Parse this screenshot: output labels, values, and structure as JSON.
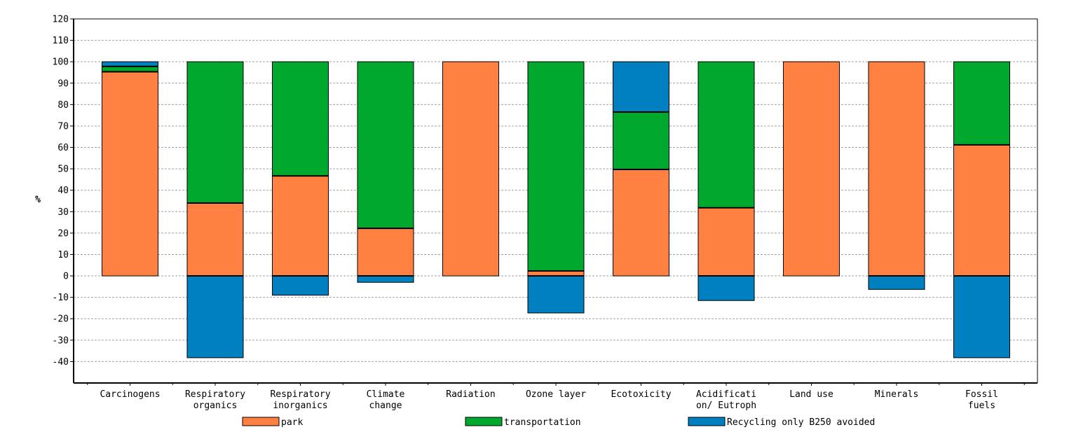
{
  "chart_data": {
    "type": "bar",
    "stacked": true,
    "title": "",
    "xlabel": "",
    "ylabel": "%",
    "ylim": [
      -50,
      120
    ],
    "yticks": [
      120,
      110,
      100,
      90,
      80,
      70,
      60,
      50,
      40,
      30,
      20,
      10,
      0,
      -10,
      -20,
      -30,
      -40
    ],
    "grid": true,
    "legend_position": "bottom",
    "categories": [
      [
        "Carcinogens"
      ],
      [
        "Respiratory",
        "organics"
      ],
      [
        "Respiratory",
        "inorganics"
      ],
      [
        "Climate",
        "change"
      ],
      [
        "Radiation"
      ],
      [
        "Ozone layer"
      ],
      [
        "Ecotoxicity"
      ],
      [
        "Acidificati",
        "on/ Eutroph"
      ],
      [
        "Land use"
      ],
      [
        "Minerals"
      ],
      [
        "Fossil",
        "fuels"
      ]
    ],
    "series": [
      {
        "name": "park",
        "color": "#ff8040",
        "values": [
          95.3,
          34.0,
          46.7,
          22.2,
          100.0,
          2.3,
          49.7,
          31.8,
          100.0,
          100.0,
          61.2
        ]
      },
      {
        "name": "transportation",
        "color": "#00a82d",
        "values": [
          2.5,
          66.0,
          53.3,
          77.8,
          0.0,
          97.7,
          26.8,
          68.2,
          0.0,
          0.0,
          38.8
        ]
      },
      {
        "name": "Recycling only B250 avoided",
        "color": "#0080c0",
        "values": [
          2.2,
          -38.2,
          -9.0,
          -3.0,
          0.0,
          -17.3,
          23.5,
          -11.5,
          0.0,
          -6.3,
          -38.2
        ]
      }
    ]
  }
}
